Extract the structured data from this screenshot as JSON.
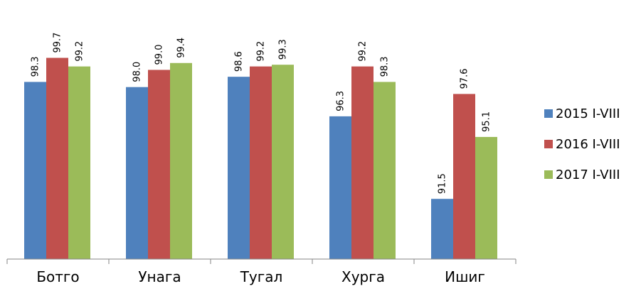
{
  "chart_data": {
    "type": "bar",
    "categories": [
      "Ботго",
      "Унага",
      "Тугал",
      "Хурга",
      "Ишиг"
    ],
    "series": [
      {
        "name": "2015 I-VIII",
        "color": "#4F81BD",
        "values": [
          98.3,
          98.0,
          98.6,
          96.3,
          91.5
        ]
      },
      {
        "name": "2016 I-VIII",
        "color": "#C0504D",
        "values": [
          99.7,
          99.0,
          99.2,
          99.2,
          97.6
        ]
      },
      {
        "name": "2017 I-VIII",
        "color": "#9BBB59",
        "values": [
          99.2,
          99.4,
          99.3,
          98.3,
          95.1
        ]
      }
    ],
    "title": "",
    "xlabel": "",
    "ylabel": "",
    "ylim": [
      88.0,
      101.0
    ],
    "grid": false,
    "legend": "right",
    "data_labels": true,
    "data_label_decimals": 1
  }
}
